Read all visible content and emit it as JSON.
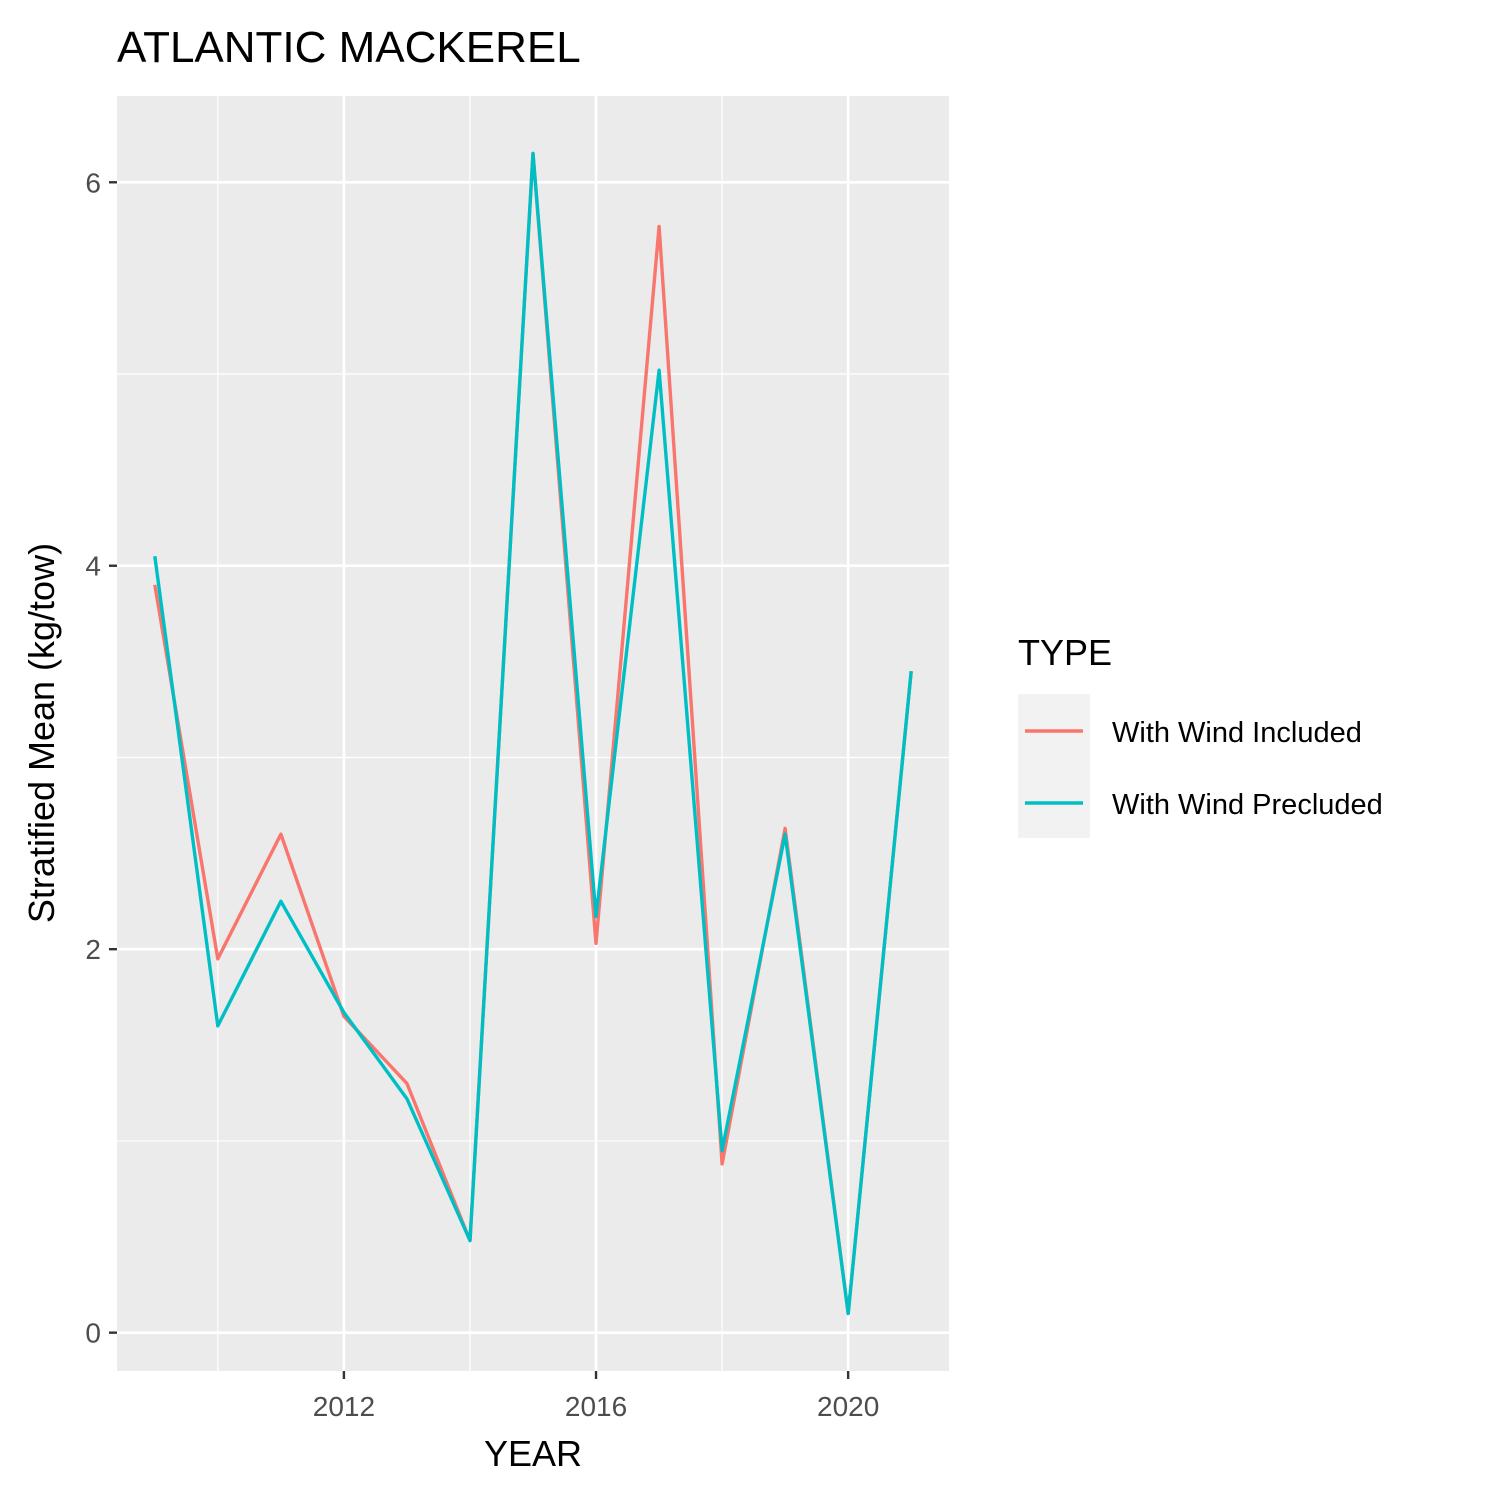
{
  "chart_data": {
    "type": "line",
    "title": "ATLANTIC MACKEREL",
    "xlabel": "YEAR",
    "ylabel": "Stratified Mean (kg/tow)",
    "x": [
      2009,
      2010,
      2011,
      2012,
      2013,
      2014,
      2015,
      2016,
      2017,
      2018,
      2019,
      2020,
      2021
    ],
    "xlim": [
      2008.4,
      2021.6
    ],
    "ylim": [
      -0.2,
      6.45
    ],
    "x_ticks": [
      2012,
      2016,
      2020
    ],
    "x_tick_labels": [
      "2012",
      "2016",
      "2020"
    ],
    "y_ticks": [
      0,
      2,
      4,
      6
    ],
    "y_tick_labels": [
      "0",
      "2",
      "4",
      "6"
    ],
    "grid": true,
    "legend": {
      "title": "TYPE",
      "position": "right"
    },
    "series": [
      {
        "name": "With Wind Included",
        "color": "#F8766D",
        "values": [
          3.9,
          1.95,
          2.6,
          1.65,
          1.3,
          0.48,
          6.15,
          2.03,
          5.77,
          0.88,
          2.63,
          0.1,
          3.45
        ]
      },
      {
        "name": "With Wind Precluded",
        "color": "#00BFC4",
        "values": [
          4.05,
          1.6,
          2.25,
          1.67,
          1.22,
          0.48,
          6.15,
          2.17,
          5.02,
          0.95,
          2.6,
          0.1,
          3.45
        ]
      }
    ]
  }
}
